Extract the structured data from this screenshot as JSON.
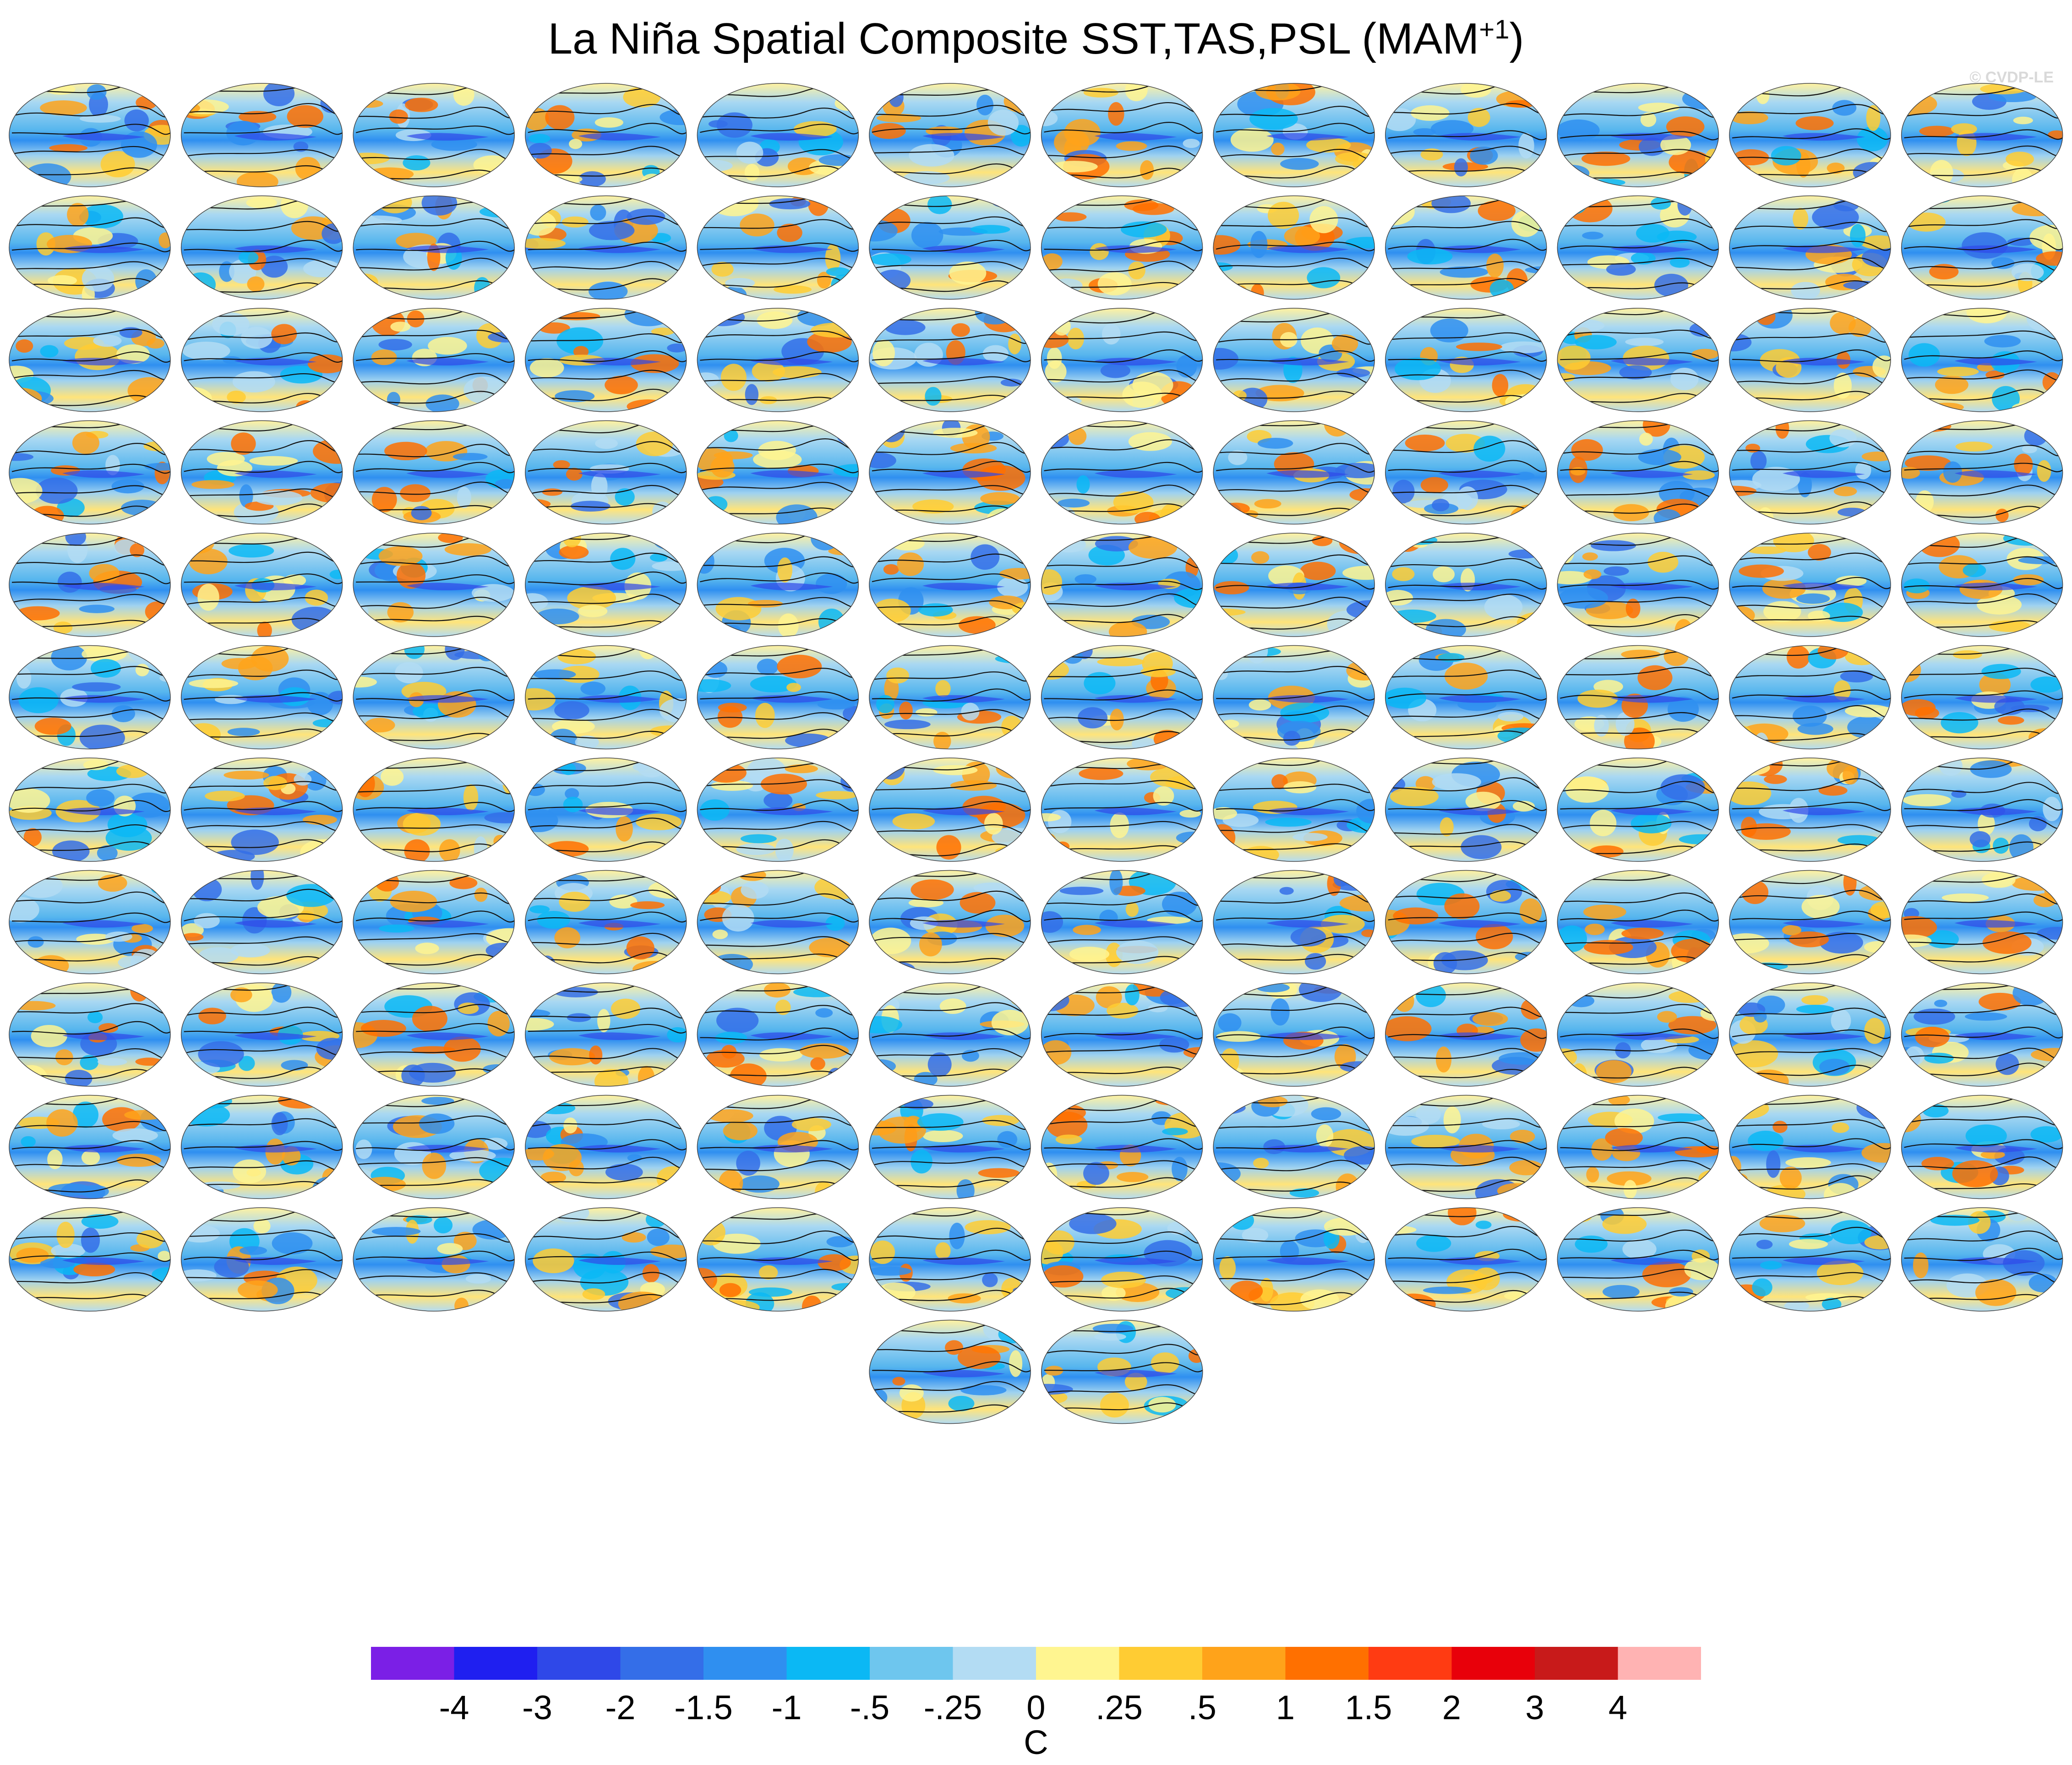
{
  "title": {
    "text": "La Niña Spatial Composite SST,TAS,PSL (MAM",
    "sup": "+1",
    "close": ")"
  },
  "credit": "© CVDP-LE",
  "chart_data": {
    "type": "heatmap",
    "panel_count": 134,
    "colorbar": {
      "tick_labels": [
        "-4",
        "-3",
        "-2",
        "-1.5",
        "-1",
        "-.5",
        "-.25",
        "0",
        ".25",
        ".5",
        "1",
        "1.5",
        "2",
        "3",
        "4"
      ],
      "unit": "C",
      "colors": [
        "#7b1fe6",
        "#1f1ff0",
        "#2f48e8",
        "#346ee8",
        "#2f8ff0",
        "#0bb8f4",
        "#6ec6ee",
        "#b3dcf3",
        "#fff590",
        "#ffcc33",
        "#ffa31a",
        "#ff7000",
        "#ff3b12",
        "#e8000a",
        "#c81a1a",
        "#ffb3b3"
      ]
    }
  }
}
